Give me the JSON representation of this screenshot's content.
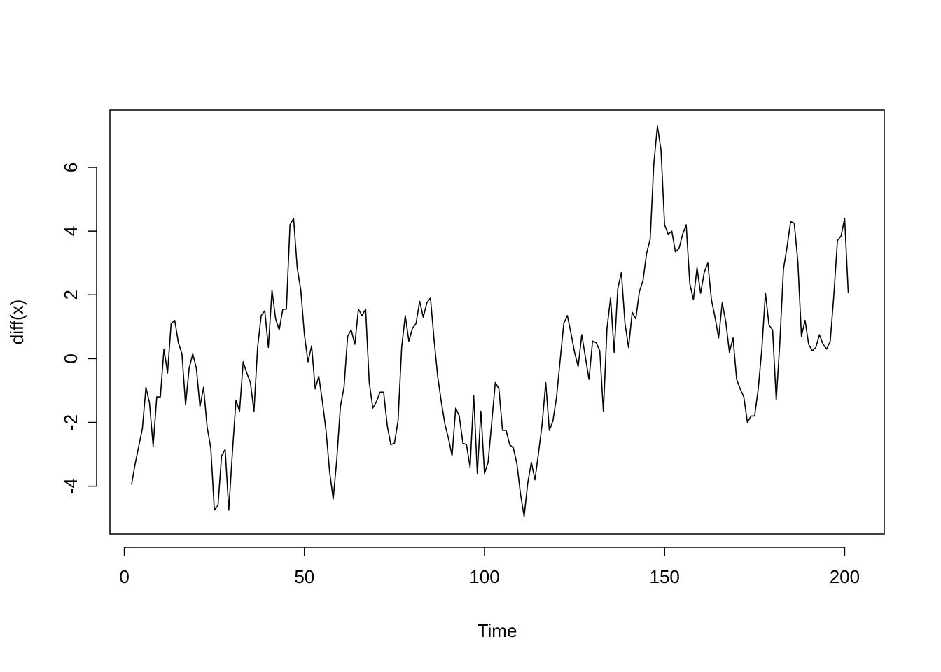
{
  "chart_data": {
    "type": "line",
    "title": "",
    "xlabel": "Time",
    "ylabel": "diff(x)",
    "xlim": [
      -4,
      211
    ],
    "ylim": [
      -5.5,
      7.8
    ],
    "xticks": [
      0,
      50,
      100,
      150,
      200
    ],
    "yticks": [
      -4,
      -2,
      0,
      2,
      4,
      6
    ],
    "xtick_labels": [
      "0",
      "50",
      "100",
      "150",
      "200"
    ],
    "ytick_labels": [
      "-4",
      "-2",
      "0",
      "2",
      "4",
      "6"
    ],
    "grid": false,
    "series": [
      {
        "x_start": 2,
        "x_step": 1,
        "values": [
          -3.95,
          -3.3,
          -2.75,
          -2.2,
          -0.9,
          -1.4,
          -2.75,
          -1.2,
          -1.2,
          0.3,
          -0.45,
          1.1,
          1.2,
          0.5,
          0.15,
          -1.45,
          -0.3,
          0.15,
          -0.3,
          -1.5,
          -0.9,
          -2.15,
          -2.8,
          -4.75,
          -4.6,
          -3.05,
          -2.85,
          -4.75,
          -2.95,
          -1.3,
          -1.65,
          -0.1,
          -0.45,
          -0.75,
          -1.65,
          0.35,
          1.35,
          1.5,
          0.35,
          2.15,
          1.25,
          0.9,
          1.55,
          1.55,
          4.2,
          4.4,
          2.85,
          2.15,
          0.75,
          -0.1,
          0.4,
          -0.95,
          -0.55,
          -1.35,
          -2.25,
          -3.55,
          -4.4,
          -3.15,
          -1.5,
          -0.9,
          0.7,
          0.9,
          0.45,
          1.55,
          1.35,
          1.55,
          -0.75,
          -1.55,
          -1.35,
          -1.05,
          -1.05,
          -2.1,
          -2.7,
          -2.65,
          -1.95,
          0.35,
          1.35,
          0.55,
          0.95,
          1.1,
          1.8,
          1.3,
          1.75,
          1.9,
          0.6,
          -0.55,
          -1.35,
          -2.05,
          -2.5,
          -3.05,
          -1.55,
          -1.8,
          -2.65,
          -2.7,
          -3.4,
          -1.15,
          -3.6,
          -1.65,
          -3.6,
          -3.25,
          -2.0,
          -0.75,
          -0.95,
          -2.25,
          -2.25,
          -2.7,
          -2.8,
          -3.3,
          -4.25,
          -4.95,
          -3.9,
          -3.25,
          -3.8,
          -2.95,
          -2.05,
          -0.75,
          -2.25,
          -1.95,
          -1.2,
          -0.05,
          1.1,
          1.35,
          0.8,
          0.2,
          -0.25,
          0.75,
          0.05,
          -0.65,
          0.55,
          0.5,
          0.25,
          -1.65,
          0.95,
          1.9,
          0.2,
          2.2,
          2.7,
          1.1,
          0.35,
          1.45,
          1.25,
          2.1,
          2.45,
          3.3,
          3.75,
          6.1,
          7.3,
          6.55,
          4.2,
          3.9,
          4.0,
          3.35,
          3.45,
          3.9,
          4.2,
          2.35,
          1.85,
          2.85,
          2.05,
          2.7,
          3.0,
          1.85,
          1.3,
          0.65,
          1.75,
          1.15,
          0.2,
          0.65,
          -0.65,
          -0.95,
          -1.2,
          -2.0,
          -1.8,
          -1.8,
          -0.95,
          0.3,
          2.05,
          1.05,
          0.9,
          -1.3,
          0.5,
          2.8,
          3.5,
          4.3,
          4.25,
          3.05,
          0.7,
          1.2,
          0.45,
          0.25,
          0.35,
          0.75,
          0.45,
          0.3,
          0.55,
          2.0,
          3.7,
          3.85,
          4.4,
          2.05
        ]
      }
    ]
  }
}
